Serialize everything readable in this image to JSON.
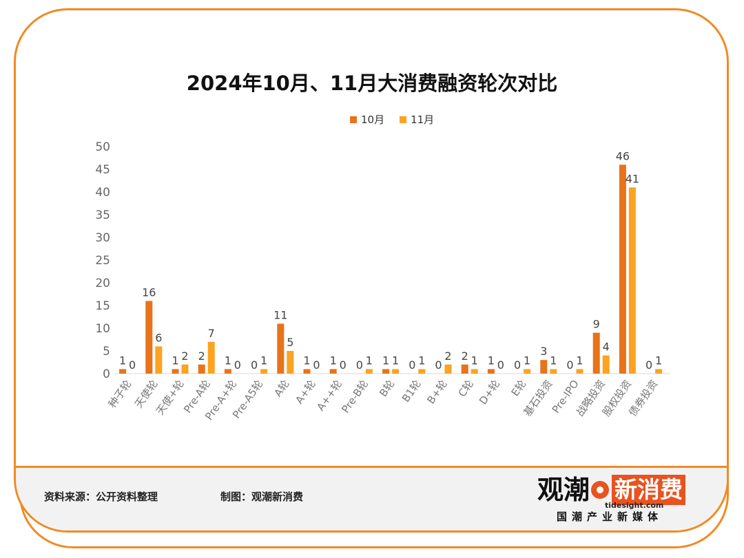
{
  "chart_data": {
    "type": "bar",
    "title": "2024年10月、11月大消费融资轮次对比",
    "categories": [
      "种子轮",
      "天使轮",
      "天使+轮",
      "Pre-A轮",
      "Pre-A+轮",
      "Pre-A5轮",
      "A轮",
      "A+轮",
      "A++轮",
      "Pre-B轮",
      "B轮",
      "B1轮",
      "B+轮",
      "C轮",
      "D+轮",
      "E轮",
      "基石投资",
      "Pre-IPO",
      "战略投资",
      "股权投资",
      "债券投资"
    ],
    "series": [
      {
        "name": "10月",
        "color": "#e8731a",
        "values": [
          1,
          16,
          1,
          2,
          1,
          0,
          11,
          1,
          1,
          0,
          1,
          0,
          0,
          2,
          1,
          0,
          3,
          0,
          9,
          46,
          0
        ]
      },
      {
        "name": "11月",
        "color": "#fca321",
        "values": [
          0,
          6,
          2,
          7,
          0,
          1,
          5,
          0,
          0,
          1,
          1,
          1,
          2,
          1,
          0,
          1,
          1,
          1,
          4,
          41,
          1
        ]
      }
    ],
    "yticks": [
      0,
      5,
      10,
      15,
      20,
      25,
      30,
      35,
      40,
      45,
      50
    ],
    "ylim": [
      0,
      50
    ],
    "legend_position": "top",
    "grid": false
  },
  "footer": {
    "source": "资料来源：公开资料整理",
    "made_by": "制图：观潮新消费"
  },
  "logo": {
    "part1": "观潮",
    "part2": "新消费",
    "url": "tidesight.com",
    "tagline": "国潮产业新媒体"
  }
}
